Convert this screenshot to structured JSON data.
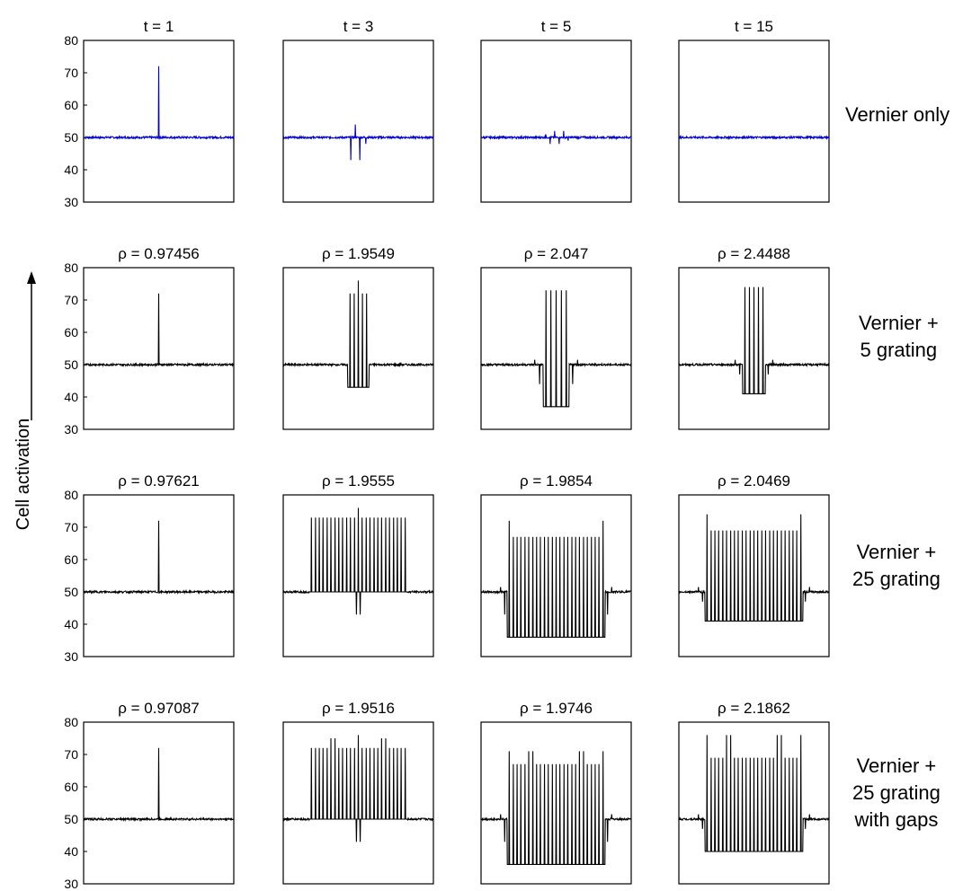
{
  "figure": {
    "ylabel": "Cell activation",
    "column_titles_top": [
      "t = 1",
      "t = 3",
      "t = 5",
      "t = 15"
    ],
    "row_labels": [
      [
        "Vernier only"
      ],
      [
        "Vernier +",
        "5 grating"
      ],
      [
        "Vernier +",
        "25 grating"
      ],
      [
        "Vernier +",
        "25 grating",
        "with gaps"
      ]
    ],
    "colors": {
      "vernier_only": "#0000cc",
      "grating": "#000000"
    }
  },
  "chart_data": [
    {
      "type": "line",
      "row": 0,
      "col": 0,
      "title": "t = 1",
      "ylim": [
        30,
        80
      ],
      "yticks": [
        30,
        40,
        50,
        60,
        70,
        80
      ],
      "baseline": 50,
      "n_lines": 0,
      "spikes": [
        {
          "x": 0.5,
          "y": 72
        }
      ],
      "color": "#0000cc"
    },
    {
      "type": "line",
      "row": 0,
      "col": 1,
      "title": "t = 3",
      "ylim": [
        30,
        80
      ],
      "baseline": 50,
      "wiggle": [
        {
          "x": 0.45,
          "y": 43
        },
        {
          "x": 0.48,
          "y": 54
        },
        {
          "x": 0.51,
          "y": 43
        },
        {
          "x": 0.55,
          "y": 48
        }
      ],
      "color": "#0000cc"
    },
    {
      "type": "line",
      "row": 0,
      "col": 2,
      "title": "t = 5",
      "ylim": [
        30,
        80
      ],
      "baseline": 50,
      "wiggle": [
        {
          "x": 0.43,
          "y": 51
        },
        {
          "x": 0.46,
          "y": 48
        },
        {
          "x": 0.49,
          "y": 52
        },
        {
          "x": 0.52,
          "y": 48
        },
        {
          "x": 0.55,
          "y": 52
        },
        {
          "x": 0.58,
          "y": 49
        }
      ],
      "color": "#0000cc"
    },
    {
      "type": "line",
      "row": 0,
      "col": 3,
      "title": "t = 15",
      "ylim": [
        30,
        80
      ],
      "baseline": 50,
      "wiggle": [],
      "color": "#0000cc"
    },
    {
      "type": "line",
      "row": 1,
      "col": 0,
      "title": "ρ = 0.97456",
      "ylim": [
        30,
        80
      ],
      "baseline": 50,
      "center": 0.5,
      "n_lines": 0,
      "peak": 72,
      "trough": 50,
      "edge_dip": 0
    },
    {
      "type": "line",
      "row": 1,
      "col": 1,
      "title": "ρ = 1.9549",
      "ylim": [
        30,
        80
      ],
      "baseline": 50,
      "center": 0.5,
      "n_lines": 5,
      "spacing": 0.028,
      "peak": 72,
      "trough": 43,
      "center_peak": 76
    },
    {
      "type": "line",
      "row": 1,
      "col": 2,
      "title": "ρ = 2.047",
      "ylim": [
        30,
        80
      ],
      "baseline": 50,
      "center": 0.5,
      "n_lines": 5,
      "spacing": 0.034,
      "peak": 73,
      "trough": 37,
      "edge_dip": 44
    },
    {
      "type": "line",
      "row": 1,
      "col": 3,
      "title": "ρ = 2.4488",
      "ylim": [
        30,
        80
      ],
      "baseline": 50,
      "center": 0.5,
      "n_lines": 5,
      "spacing": 0.03,
      "peak": 74,
      "trough": 41,
      "edge_dip": 47
    },
    {
      "type": "line",
      "row": 2,
      "col": 0,
      "title": "ρ = 0.97621",
      "ylim": [
        30,
        80
      ],
      "baseline": 50,
      "center": 0.5,
      "n_lines": 0,
      "peak": 72,
      "trough": 50
    },
    {
      "type": "line",
      "row": 2,
      "col": 1,
      "title": "ρ = 1.9555",
      "ylim": [
        30,
        80
      ],
      "baseline": 50,
      "center": 0.5,
      "n_lines": 25,
      "spacing": 0.026,
      "peak": 73,
      "trough": 50,
      "center_peak": 76,
      "center_trough": 43
    },
    {
      "type": "line",
      "row": 2,
      "col": 2,
      "title": "ρ = 1.9854",
      "ylim": [
        30,
        80
      ],
      "baseline": 50,
      "center": 0.5,
      "n_lines": 25,
      "spacing": 0.026,
      "peak": 67,
      "trough": 36,
      "edge_peak": 72,
      "edge_dip": 43
    },
    {
      "type": "line",
      "row": 2,
      "col": 3,
      "title": "ρ = 2.0469",
      "ylim": [
        30,
        80
      ],
      "baseline": 50,
      "center": 0.5,
      "n_lines": 25,
      "spacing": 0.026,
      "peak": 69,
      "trough": 41,
      "edge_peak": 74,
      "edge_dip": 47
    },
    {
      "type": "line",
      "row": 3,
      "col": 0,
      "title": "ρ = 0.97087",
      "ylim": [
        30,
        80
      ],
      "baseline": 50,
      "center": 0.5,
      "n_lines": 0,
      "peak": 72,
      "trough": 50
    },
    {
      "type": "line",
      "row": 3,
      "col": 1,
      "title": "ρ = 1.9516",
      "ylim": [
        30,
        80
      ],
      "baseline": 50,
      "center": 0.5,
      "n_lines": 25,
      "spacing": 0.026,
      "peak": 72,
      "trough": 50,
      "center_peak": 76,
      "center_trough": 43,
      "gaps": true
    },
    {
      "type": "line",
      "row": 3,
      "col": 2,
      "title": "ρ = 1.9746",
      "ylim": [
        30,
        80
      ],
      "baseline": 50,
      "center": 0.5,
      "n_lines": 25,
      "spacing": 0.026,
      "peak": 67,
      "trough": 36,
      "edge_peak": 71,
      "edge_dip": 43,
      "gaps": true
    },
    {
      "type": "line",
      "row": 3,
      "col": 3,
      "title": "ρ = 2.1862",
      "ylim": [
        30,
        80
      ],
      "baseline": 50,
      "center": 0.5,
      "n_lines": 25,
      "spacing": 0.026,
      "peak": 69,
      "trough": 40,
      "edge_peak": 76,
      "edge_dip": 47,
      "gaps": true
    }
  ]
}
